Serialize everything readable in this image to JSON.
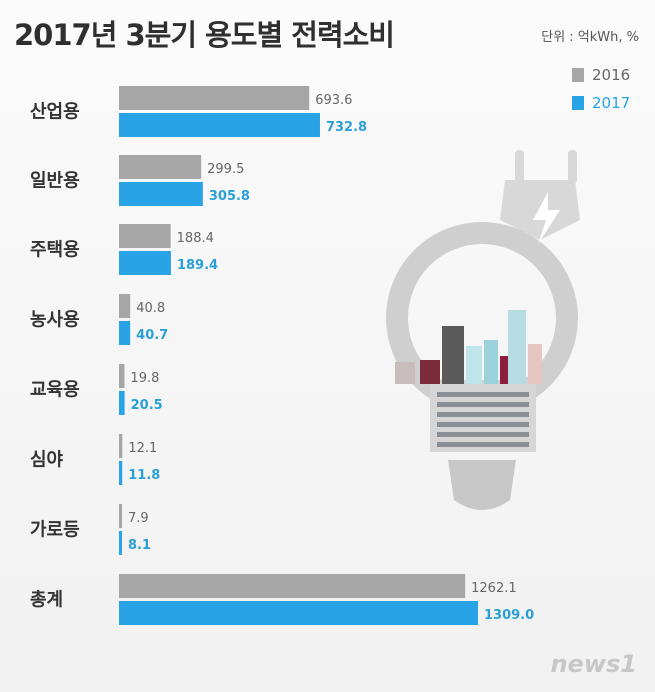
{
  "header": {
    "title": "2017년 3분기 용도별 전력소비",
    "unit": "단위 : 억kWh, %"
  },
  "legend": [
    {
      "label": "2016",
      "color": "#a6a6a6"
    },
    {
      "label": "2017",
      "color": "#27a3e6"
    }
  ],
  "watermark": "news1",
  "chart_data": {
    "type": "bar",
    "orientation": "horizontal",
    "categories": [
      "산업용",
      "일반용",
      "주택용",
      "농사용",
      "교육용",
      "심야",
      "가로등",
      "총계"
    ],
    "series": [
      {
        "name": "2016",
        "color": "#a6a6a6",
        "values": [
          693.6,
          299.5,
          188.4,
          40.8,
          19.8,
          12.1,
          7.9,
          1262.1
        ],
        "labels": [
          "693.6",
          "299.5",
          "188.4",
          "40.8",
          "19.8",
          "12.1",
          "7.9",
          "1262.1"
        ]
      },
      {
        "name": "2017",
        "color": "#27a3e6",
        "values": [
          732.8,
          305.8,
          189.4,
          40.7,
          20.5,
          11.8,
          8.1,
          1309.0
        ],
        "labels": [
          "732.8",
          "305.8",
          "189.4",
          "40.7",
          "20.5",
          "11.8",
          "8.1",
          "1309.0"
        ]
      }
    ],
    "title": "2017년 3분기 용도별 전력소비",
    "legend_position": "top-right",
    "grid": false
  }
}
